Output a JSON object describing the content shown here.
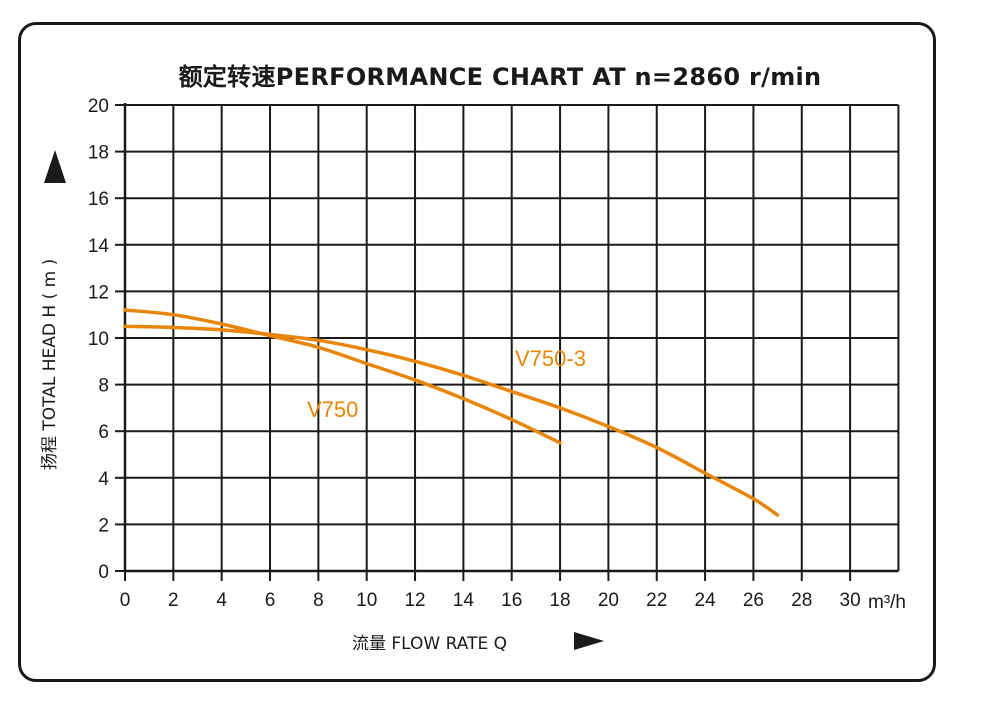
{
  "chart_data": {
    "type": "line",
    "title": "额定转速PERFORMANCE CHART AT  n=2860 r/min",
    "xlabel": "流量 FLOW RATE  Q",
    "ylabel": "扬程 TOTAL HEAD  H ( m )",
    "x_unit": "m³/h",
    "xlim": [
      0,
      32
    ],
    "ylim": [
      0,
      20
    ],
    "x_ticks": [
      0,
      2,
      4,
      6,
      8,
      10,
      12,
      14,
      16,
      18,
      20,
      22,
      24,
      26,
      28,
      30
    ],
    "y_ticks": [
      0,
      2,
      4,
      6,
      8,
      10,
      12,
      14,
      16,
      18,
      20
    ],
    "grid": true,
    "series": [
      {
        "name": "V750",
        "color": "#e8860a",
        "points": [
          [
            0,
            11.2
          ],
          [
            2,
            11.0
          ],
          [
            4,
            10.6
          ],
          [
            6,
            10.1
          ],
          [
            8,
            9.6
          ],
          [
            10,
            8.9
          ],
          [
            12,
            8.2
          ],
          [
            14,
            7.4
          ],
          [
            16,
            6.5
          ],
          [
            18,
            5.5
          ]
        ]
      },
      {
        "name": "V750-3",
        "color": "#e8860a",
        "points": [
          [
            0,
            10.5
          ],
          [
            2,
            10.45
          ],
          [
            4,
            10.35
          ],
          [
            6,
            10.15
          ],
          [
            8,
            9.9
          ],
          [
            10,
            9.5
          ],
          [
            12,
            9.0
          ],
          [
            14,
            8.4
          ],
          [
            16,
            7.7
          ],
          [
            18,
            7.0
          ],
          [
            20,
            6.2
          ],
          [
            22,
            5.3
          ],
          [
            24,
            4.2
          ],
          [
            26,
            3.1
          ],
          [
            27,
            2.4
          ]
        ]
      }
    ]
  }
}
